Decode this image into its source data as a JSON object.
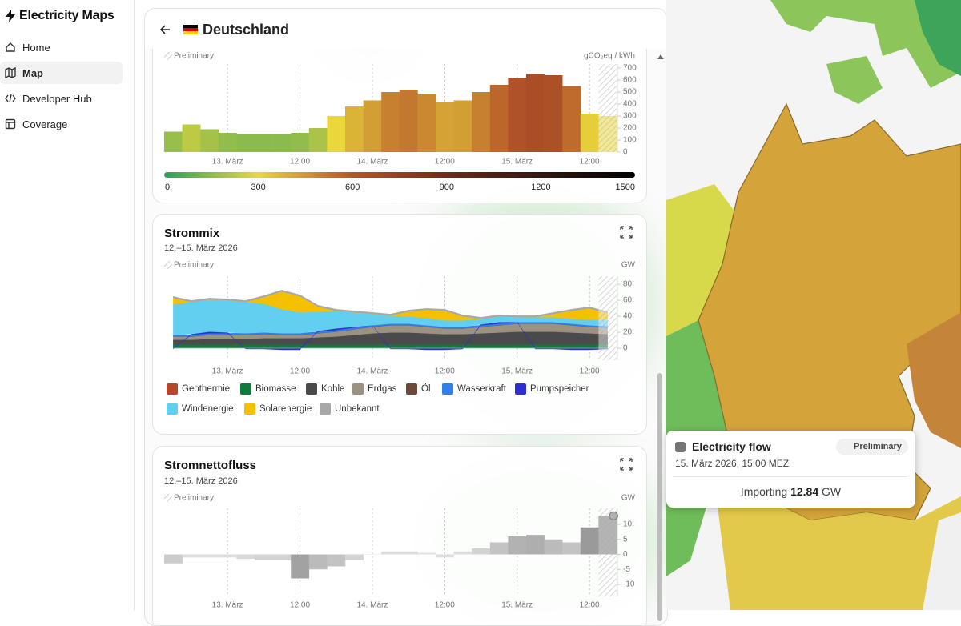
{
  "sidebar": {
    "brand": "Electricity Maps",
    "nav": [
      "Home",
      "Map",
      "Developer Hub",
      "Coverage"
    ]
  },
  "panel": {
    "title": "Deutschland"
  },
  "chart_data": [
    {
      "type": "bar",
      "preliminary": "Preliminary",
      "unit": "gCO₂eq / kWh",
      "x": [
        "2026-03-12T15:00",
        "2026-03-12T18:00",
        "2026-03-12T21:00",
        "2026-03-13T00:00",
        "2026-03-13T03:00",
        "2026-03-13T06:00",
        "2026-03-13T09:00",
        "2026-03-13T12:00",
        "2026-03-13T15:00",
        "2026-03-13T18:00",
        "2026-03-13T21:00",
        "2026-03-14T00:00",
        "2026-03-14T03:00",
        "2026-03-14T06:00",
        "2026-03-14T09:00",
        "2026-03-14T12:00",
        "2026-03-14T15:00",
        "2026-03-14T18:00",
        "2026-03-14T21:00",
        "2026-03-15T00:00",
        "2026-03-15T03:00",
        "2026-03-15T06:00",
        "2026-03-15T09:00",
        "2026-03-15T12:00",
        "2026-03-15T15:00"
      ],
      "values": [
        170,
        230,
        190,
        160,
        150,
        150,
        150,
        160,
        200,
        300,
        380,
        430,
        500,
        520,
        480,
        420,
        430,
        500,
        560,
        620,
        650,
        640,
        550,
        320,
        300
      ],
      "xlim": [
        "2026-03-12T13:30",
        "2026-03-15T16:30"
      ],
      "xticks": [
        {
          "value": "2026-03-13T00:00",
          "label": "13. März"
        },
        {
          "value": "2026-03-13T12:00",
          "label": "12:00"
        },
        {
          "value": "2026-03-14T00:00",
          "label": "14. März"
        },
        {
          "value": "2026-03-14T12:00",
          "label": "12:00"
        },
        {
          "value": "2026-03-15T00:00",
          "label": "15. März"
        },
        {
          "value": "2026-03-15T12:00",
          "label": "12:00"
        }
      ],
      "ylim": [
        0,
        700
      ],
      "yticks": [
        0,
        100,
        200,
        300,
        400,
        500,
        600,
        700
      ],
      "colorscale": {
        "ticks": [
          0,
          300,
          600,
          900,
          1200,
          1500
        ],
        "colors": [
          "#2f9e5e",
          "#e9d73c",
          "#b5552a",
          "#6e2c1a",
          "#33170f",
          "#000000"
        ]
      }
    },
    {
      "type": "area",
      "title": "Strommix",
      "subtitle": "12.–15. März 2026",
      "preliminary": "Preliminary",
      "unit": "GW",
      "x": [
        "2026-03-12T15:00",
        "2026-03-12T18:00",
        "2026-03-12T21:00",
        "2026-03-13T00:00",
        "2026-03-13T03:00",
        "2026-03-13T06:00",
        "2026-03-13T09:00",
        "2026-03-13T12:00",
        "2026-03-13T15:00",
        "2026-03-13T18:00",
        "2026-03-13T21:00",
        "2026-03-14T00:00",
        "2026-03-14T03:00",
        "2026-03-14T06:00",
        "2026-03-14T09:00",
        "2026-03-14T12:00",
        "2026-03-14T15:00",
        "2026-03-14T18:00",
        "2026-03-14T21:00",
        "2026-03-15T00:00",
        "2026-03-15T03:00",
        "2026-03-15T06:00",
        "2026-03-15T09:00",
        "2026-03-15T12:00",
        "2026-03-15T15:00"
      ],
      "xlim": [
        "2026-03-12T13:30",
        "2026-03-15T16:30"
      ],
      "xticks": [
        {
          "value": "2026-03-13T00:00",
          "label": "13. März"
        },
        {
          "value": "2026-03-13T12:00",
          "label": "12:00"
        },
        {
          "value": "2026-03-14T00:00",
          "label": "14. März"
        },
        {
          "value": "2026-03-14T12:00",
          "label": "12:00"
        },
        {
          "value": "2026-03-15T00:00",
          "label": "15. März"
        },
        {
          "value": "2026-03-15T12:00",
          "label": "12:00"
        }
      ],
      "ylim": [
        -15,
        85
      ],
      "yticks": [
        0,
        20,
        40,
        60,
        80
      ],
      "series": [
        {
          "name": "Geothermie",
          "color": "#b5462a",
          "values": [
            0.1,
            0.1,
            0.1,
            0.1,
            0.1,
            0.1,
            0.1,
            0.1,
            0.1,
            0.1,
            0.1,
            0.1,
            0.1,
            0.1,
            0.1,
            0.1,
            0.1,
            0.1,
            0.1,
            0.1,
            0.1,
            0.1,
            0.1,
            0.1,
            0.1
          ]
        },
        {
          "name": "Biomasse",
          "color": "#0f7a3d",
          "values": [
            4.5,
            4.5,
            4.5,
            4.5,
            4.5,
            4.5,
            4.5,
            4.5,
            4.5,
            4.5,
            4.5,
            4.5,
            4.5,
            4.5,
            4.5,
            4.5,
            4.5,
            4.5,
            4.5,
            4.5,
            4.5,
            4.5,
            4.5,
            4.5,
            4.5
          ]
        },
        {
          "name": "Kohle",
          "color": "#4a4a4a",
          "values": [
            6,
            6,
            7,
            7,
            7,
            8,
            8,
            8,
            9,
            10,
            12,
            14,
            15,
            15,
            14,
            13,
            13,
            14,
            15,
            16,
            16,
            16,
            15,
            14,
            13
          ]
        },
        {
          "name": "Erdgas",
          "color": "#9c9282",
          "values": [
            4,
            4,
            5,
            5,
            5,
            5,
            4,
            4,
            5,
            6,
            7,
            8,
            9,
            9,
            8,
            7,
            7,
            8,
            9,
            10,
            10,
            10,
            9,
            8,
            8
          ]
        },
        {
          "name": "Öl",
          "color": "#6b4a3a",
          "values": [
            0.3,
            0.3,
            0.3,
            0.3,
            0.3,
            0.3,
            0.3,
            0.3,
            0.3,
            0.3,
            0.3,
            0.3,
            0.3,
            0.3,
            0.3,
            0.3,
            0.3,
            0.3,
            0.3,
            0.3,
            0.3,
            0.3,
            0.3,
            0.3,
            0.3
          ]
        },
        {
          "name": "Wasserkraft",
          "color": "#2f80ed",
          "values": [
            1.8,
            1.8,
            1.8,
            1.8,
            1.8,
            1.8,
            1.8,
            1.8,
            1.8,
            1.8,
            1.8,
            1.8,
            1.8,
            1.8,
            1.8,
            1.8,
            1.8,
            1.8,
            1.8,
            1.8,
            1.8,
            1.8,
            1.8,
            1.8,
            1.8
          ]
        },
        {
          "name": "Pumpspeicher",
          "color": "#2b2fd1",
          "values": [
            -1,
            1,
            2,
            1,
            -1,
            -1,
            -2,
            -2,
            1,
            2,
            1,
            0,
            -1,
            -1,
            -2,
            -2,
            -1,
            1,
            2,
            0,
            -1,
            -1,
            -2,
            -2,
            -1
          ]
        },
        {
          "name": "Windenergie",
          "color": "#63cff0",
          "values": [
            38,
            40,
            40,
            40,
            39,
            36,
            30,
            26,
            24,
            22,
            18,
            14,
            10,
            9,
            9,
            8,
            8,
            7,
            7,
            6,
            6,
            6,
            6,
            7,
            8
          ]
        },
        {
          "name": "Solarenergie",
          "color": "#f5c000",
          "values": [
            8,
            0,
            0,
            0,
            0,
            8,
            22,
            20,
            6,
            0,
            0,
            0,
            0,
            6,
            10,
            12,
            5,
            0,
            0,
            0,
            0,
            4,
            10,
            14,
            8
          ]
        },
        {
          "name": "Unbekannt",
          "color": "#a8a8a8",
          "values": [
            2,
            2,
            2,
            2,
            2,
            2,
            2,
            2,
            2,
            2,
            2,
            2,
            2,
            2,
            2,
            2,
            2,
            2,
            2,
            2,
            2,
            2,
            2,
            2,
            2
          ]
        }
      ]
    },
    {
      "type": "bar",
      "title": "Stromnettofluss",
      "subtitle": "12.–15. März 2026",
      "preliminary": "Preliminary",
      "unit": "GW",
      "color": "#7a7a7a",
      "x": [
        "2026-03-12T15:00",
        "2026-03-12T18:00",
        "2026-03-12T21:00",
        "2026-03-13T00:00",
        "2026-03-13T03:00",
        "2026-03-13T06:00",
        "2026-03-13T09:00",
        "2026-03-13T12:00",
        "2026-03-13T15:00",
        "2026-03-13T18:00",
        "2026-03-13T21:00",
        "2026-03-14T00:00",
        "2026-03-14T03:00",
        "2026-03-14T06:00",
        "2026-03-14T09:00",
        "2026-03-14T12:00",
        "2026-03-14T15:00",
        "2026-03-14T18:00",
        "2026-03-14T21:00",
        "2026-03-15T00:00",
        "2026-03-15T03:00",
        "2026-03-15T06:00",
        "2026-03-15T09:00",
        "2026-03-15T12:00",
        "2026-03-15T15:00"
      ],
      "values": [
        -3,
        -1,
        -1,
        -1,
        -1.5,
        -2,
        -2,
        -8,
        -5,
        -4,
        -2,
        0,
        1,
        1,
        0.5,
        -1,
        1,
        2,
        4,
        6,
        6.5,
        5,
        4,
        9,
        12.84
      ],
      "xlim": [
        "2026-03-12T13:30",
        "2026-03-15T16:30"
      ],
      "xticks": [
        {
          "value": "2026-03-13T00:00",
          "label": "13. März"
        },
        {
          "value": "2026-03-13T12:00",
          "label": "12:00"
        },
        {
          "value": "2026-03-14T00:00",
          "label": "14. März"
        },
        {
          "value": "2026-03-14T12:00",
          "label": "12:00"
        },
        {
          "value": "2026-03-15T00:00",
          "label": "15. März"
        },
        {
          "value": "2026-03-15T12:00",
          "label": "12:00"
        }
      ],
      "ylim": [
        -14,
        14
      ],
      "yticks": [
        -10,
        -5,
        0,
        5,
        10
      ]
    }
  ],
  "tooltip": {
    "title": "Electricity flow",
    "badge": "Preliminary",
    "date": "15. März 2026, 15:00 MEZ",
    "text": "Importing",
    "unit": "GW"
  }
}
